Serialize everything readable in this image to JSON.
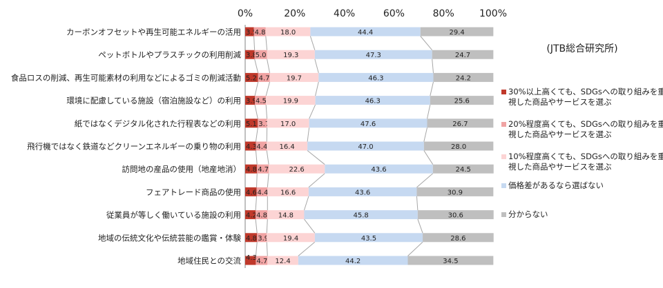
{
  "source_note": "(JTB総合研究所)",
  "colors": {
    "c30": "#c0392b",
    "c20": "#f0a3a3",
    "c10": "#fcd4d4",
    "price": "#c6d9f1",
    "unknown": "#bfbfbf",
    "connector": "#a6a6a6"
  },
  "legend": [
    {
      "label": "30%以上高くても、SDGsへの取り組みを重視した商品やサービスを選ぶ",
      "color_key": "c30"
    },
    {
      "label": "20%程度高くても、SDGsへの取り組みを重視した商品やサービスを選ぶ",
      "color_key": "c20"
    },
    {
      "label": "10%程度高くても、SDGsへの取り組みを重視した商品やサービスを選ぶ",
      "color_key": "c10"
    },
    {
      "label": "価格差があるなら選ばない",
      "color_key": "price"
    },
    {
      "label": "分からない",
      "color_key": "unknown"
    }
  ],
  "chart_data": {
    "type": "bar",
    "orientation": "horizontal",
    "stacked": true,
    "xlim": [
      0,
      100
    ],
    "x_ticks": [
      "0%",
      "20%",
      "40%",
      "60%",
      "80%",
      "100%"
    ],
    "categories": [
      "カーボンオフセットや再生可能エネルギーの活用",
      "ペットボトルやプラスチックの利用削減",
      "食品ロスの削減、再生可能素材の利用などによるゴミの削減活動",
      "環境に配慮している施設（宿泊施設など）の利用",
      "紙ではなくデジタル化された行程表などの利用",
      "飛行機ではなく鉄道などクリーンエネルギーの乗り物の利用",
      "訪問地の産品の使用（地産地消）",
      "フェアトレード商品の使用",
      "従業員が等しく働いている施設の利用",
      "地域の伝統文化や伝統芸能の鑑賞・体験",
      "地域住民との交流"
    ],
    "series": [
      {
        "name": "30%以上高くても、SDGsへの取り組みを重視した商品やサービスを選ぶ",
        "color_key": "c30",
        "values": [
          3.5,
          3.8,
          5.2,
          3.9,
          5.1,
          4.3,
          4.8,
          4.6,
          4.2,
          4.8,
          4.3
        ]
      },
      {
        "name": "20%程度高くても、SDGsへの取り組みを重視した商品やサービスを選ぶ",
        "color_key": "c20",
        "values": [
          4.8,
          5.0,
          4.7,
          4.5,
          3.7,
          4.4,
          4.7,
          4.4,
          4.8,
          3.9,
          4.7
        ]
      },
      {
        "name": "10%程度高くても、SDGsへの取り組みを重視した商品やサービスを選ぶ",
        "color_key": "c10",
        "values": [
          18.0,
          19.3,
          19.7,
          19.9,
          17.0,
          16.4,
          22.6,
          16.6,
          14.8,
          19.4,
          12.4
        ]
      },
      {
        "name": "価格差があるなら選ばない",
        "color_key": "price",
        "values": [
          44.4,
          47.3,
          46.3,
          46.3,
          47.6,
          47.0,
          43.6,
          43.6,
          45.8,
          43.5,
          44.2
        ]
      },
      {
        "name": "分からない",
        "color_key": "unknown",
        "values": [
          29.4,
          24.7,
          24.2,
          25.6,
          26.7,
          28.0,
          24.5,
          30.9,
          30.6,
          28.6,
          34.5
        ]
      }
    ]
  }
}
